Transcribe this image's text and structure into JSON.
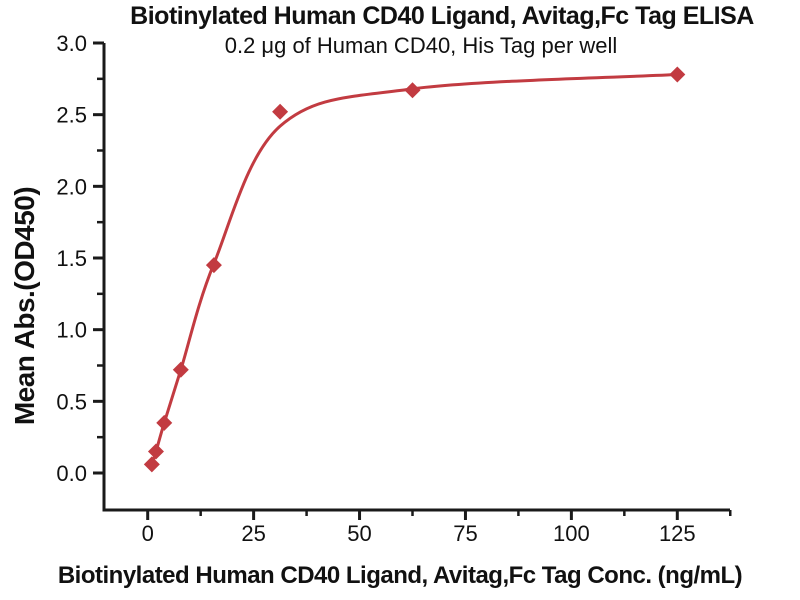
{
  "chart_data": {
    "type": "line",
    "title": "Biotinylated Human CD40 Ligand, Avitag,Fc Tag ELISA",
    "subtitle": "0.2 μg of Human CD40, His Tag per well",
    "xlabel": "Biotinylated Human CD40 Ligand, Avitag,Fc Tag Conc. (ng/mL)",
    "ylabel": "Mean Abs.(OD450)",
    "xlim": [
      -10,
      137.5
    ],
    "ylim": [
      -0.26,
      3.0
    ],
    "grid": false,
    "legend": "none",
    "x_ticks": {
      "major": [
        0,
        25,
        50,
        75,
        100,
        125
      ],
      "major_labels": [
        "0",
        "25",
        "50",
        "75",
        "100",
        "125"
      ],
      "minor": [
        12.5,
        37.5,
        62.5,
        87.5,
        112.5,
        137.5
      ]
    },
    "y_ticks": {
      "major": [
        0,
        0.5,
        1,
        1.5,
        2,
        2.5,
        3
      ],
      "major_labels": [
        "0.0",
        "0.5",
        "1.0",
        "1.5",
        "2.0",
        "2.5",
        "3.0"
      ],
      "minor": [
        0.25,
        0.75,
        1.25,
        1.75,
        2.25,
        2.75
      ]
    },
    "marker": "diamond",
    "points": [
      {
        "x": 0.977,
        "y": 0.06
      },
      {
        "x": 1.953,
        "y": 0.15
      },
      {
        "x": 3.906,
        "y": 0.35
      },
      {
        "x": 7.813,
        "y": 0.72
      },
      {
        "x": 15.625,
        "y": 1.45
      },
      {
        "x": 31.25,
        "y": 2.52
      },
      {
        "x": 62.5,
        "y": 2.67
      },
      {
        "x": 125,
        "y": 2.78
      }
    ],
    "curve_points": [
      {
        "x": 0.977,
        "y": 0.06
      },
      {
        "x": 1.953,
        "y": 0.15
      },
      {
        "x": 3.906,
        "y": 0.35
      },
      {
        "x": 7.813,
        "y": 0.72
      },
      {
        "x": 15.625,
        "y": 1.46
      },
      {
        "x": 31.25,
        "y": 2.42
      },
      {
        "x": 62.5,
        "y": 2.68
      },
      {
        "x": 125,
        "y": 2.78
      }
    ],
    "line_color": "#C23B41",
    "marker_color": "#C23B41",
    "axis_color": "#1a1a1a",
    "text_color": "#111111"
  }
}
